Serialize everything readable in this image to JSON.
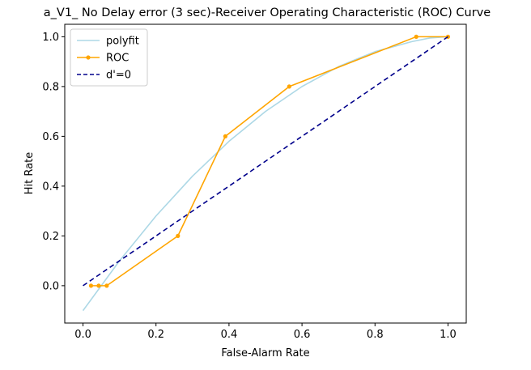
{
  "chart_data": {
    "type": "line",
    "title": "a_V1_ No Delay error (3 sec)-Receiver Operating Characteristic (ROC) Curve",
    "xlabel": "False-Alarm Rate",
    "ylabel": "Hit Rate",
    "xlim": [
      -0.05,
      1.05
    ],
    "ylim": [
      -0.15,
      1.05
    ],
    "xticks": [
      0.0,
      0.2,
      0.4,
      0.6,
      0.8,
      1.0
    ],
    "xtick_labels": [
      "0.0",
      "0.2",
      "0.4",
      "0.6",
      "0.8",
      "1.0"
    ],
    "yticks": [
      0.0,
      0.2,
      0.4,
      0.6,
      0.8,
      1.0
    ],
    "ytick_labels": [
      "0.0",
      "0.2",
      "0.4",
      "0.6",
      "0.8",
      "1.0"
    ],
    "grid": false,
    "legend_position": "upper left",
    "series": [
      {
        "name": "polyfit",
        "color": "#add8e6",
        "style": "solid",
        "markers": false,
        "x": [
          0.0,
          0.05,
          0.1,
          0.15,
          0.2,
          0.25,
          0.3,
          0.35,
          0.4,
          0.45,
          0.5,
          0.55,
          0.6,
          0.65,
          0.7,
          0.75,
          0.8,
          0.85,
          0.9,
          0.95,
          1.0
        ],
        "y": [
          -0.1,
          0.0,
          0.1,
          0.19,
          0.28,
          0.36,
          0.44,
          0.51,
          0.58,
          0.64,
          0.7,
          0.75,
          0.8,
          0.84,
          0.88,
          0.91,
          0.94,
          0.96,
          0.98,
          0.995,
          1.0
        ]
      },
      {
        "name": "ROC",
        "color": "#ffa500",
        "style": "solid",
        "markers": true,
        "x": [
          0.022,
          0.043,
          0.065,
          0.26,
          0.39,
          0.565,
          0.913,
          1.0
        ],
        "y": [
          0.0,
          0.0,
          0.0,
          0.2,
          0.6,
          0.8,
          1.0,
          1.0
        ]
      },
      {
        "name": "d'=0",
        "color": "#00008b",
        "style": "dashed",
        "markers": false,
        "x": [
          0.0,
          1.0
        ],
        "y": [
          0.0,
          1.0
        ]
      }
    ]
  }
}
